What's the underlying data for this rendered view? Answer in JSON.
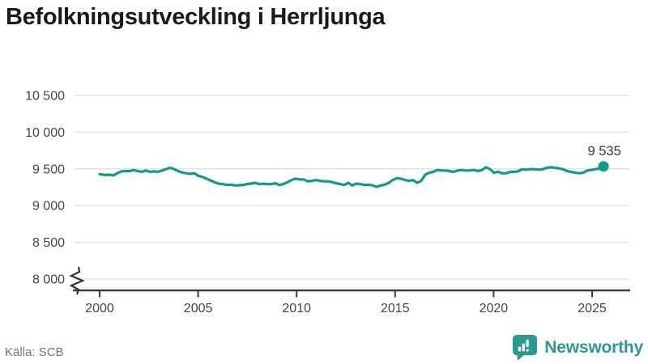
{
  "title": "Befolkningsutveckling i Herrljunga",
  "footer": {
    "source": "Källa: SCB",
    "brand": "Newsworthy"
  },
  "colors": {
    "line": "#0f9b8c",
    "marker": "#0f9b8c",
    "brand_teal": "#2a9a90",
    "grid": "#e2e2e2",
    "axis": "#3c3c3c",
    "tick_label": "#454545",
    "point_label": "#383838"
  },
  "chart_data": {
    "type": "line",
    "title": "Befolkningsutveckling i Herrljunga",
    "series_name": "Befolkning i Herrljunga",
    "xlabel": "",
    "ylabel": "",
    "grid": "horizontal",
    "y_axis_break": true,
    "ylim": [
      8000,
      10500
    ],
    "xlim": [
      1998.6,
      2026.9
    ],
    "y_ticks": [
      {
        "label": "10 500",
        "value": 10500
      },
      {
        "label": "10 000",
        "value": 10000
      },
      {
        "label": "9 500",
        "value": 9500
      },
      {
        "label": "9 000",
        "value": 9000
      },
      {
        "label": "8 500",
        "value": 8500
      },
      {
        "label": "8 000",
        "value": 8000
      }
    ],
    "x_ticks": [
      {
        "label": "2000",
        "value": 2000
      },
      {
        "label": "2005",
        "value": 2005
      },
      {
        "label": "2010",
        "value": 2010
      },
      {
        "label": "2015",
        "value": 2015
      },
      {
        "label": "2020",
        "value": 2020
      },
      {
        "label": "2025",
        "value": 2025
      }
    ],
    "last_point": {
      "label": "9 535",
      "year": 2025.58,
      "value": 9535
    },
    "points": [
      [
        2000.0,
        9430
      ],
      [
        2000.29,
        9415
      ],
      [
        2000.49,
        9422
      ],
      [
        2000.7,
        9411
      ],
      [
        2000.9,
        9441
      ],
      [
        2001.11,
        9467
      ],
      [
        2001.32,
        9470
      ],
      [
        2001.52,
        9470
      ],
      [
        2001.73,
        9485
      ],
      [
        2001.93,
        9470
      ],
      [
        2002.14,
        9460
      ],
      [
        2002.34,
        9478
      ],
      [
        2002.55,
        9460
      ],
      [
        2002.75,
        9467
      ],
      [
        2002.96,
        9460
      ],
      [
        2003.17,
        9478
      ],
      [
        2003.37,
        9497
      ],
      [
        2003.58,
        9515
      ],
      [
        2003.78,
        9497
      ],
      [
        2003.99,
        9470
      ],
      [
        2004.19,
        9450
      ],
      [
        2004.4,
        9440
      ],
      [
        2004.6,
        9433
      ],
      [
        2004.81,
        9440
      ],
      [
        2005.02,
        9404
      ],
      [
        2005.22,
        9390
      ],
      [
        2005.43,
        9367
      ],
      [
        2005.63,
        9341
      ],
      [
        2005.84,
        9319
      ],
      [
        2006.04,
        9300
      ],
      [
        2006.25,
        9293
      ],
      [
        2006.46,
        9281
      ],
      [
        2006.66,
        9285
      ],
      [
        2006.87,
        9274
      ],
      [
        2007.07,
        9278
      ],
      [
        2007.28,
        9281
      ],
      [
        2007.48,
        9293
      ],
      [
        2007.69,
        9300
      ],
      [
        2007.9,
        9311
      ],
      [
        2008.1,
        9293
      ],
      [
        2008.31,
        9300
      ],
      [
        2008.51,
        9293
      ],
      [
        2008.72,
        9293
      ],
      [
        2008.92,
        9304
      ],
      [
        2009.13,
        9281
      ],
      [
        2009.33,
        9293
      ],
      [
        2009.54,
        9319
      ],
      [
        2009.75,
        9348
      ],
      [
        2009.95,
        9367
      ],
      [
        2010.16,
        9356
      ],
      [
        2010.36,
        9356
      ],
      [
        2010.57,
        9330
      ],
      [
        2010.77,
        9337
      ],
      [
        2010.98,
        9348
      ],
      [
        2011.18,
        9337
      ],
      [
        2011.39,
        9330
      ],
      [
        2011.6,
        9330
      ],
      [
        2011.8,
        9319
      ],
      [
        2012.01,
        9304
      ],
      [
        2012.21,
        9293
      ],
      [
        2012.42,
        9281
      ],
      [
        2012.62,
        9311
      ],
      [
        2012.83,
        9274
      ],
      [
        2013.03,
        9300
      ],
      [
        2013.24,
        9293
      ],
      [
        2013.45,
        9281
      ],
      [
        2013.65,
        9285
      ],
      [
        2013.86,
        9274
      ],
      [
        2014.06,
        9255
      ],
      [
        2014.27,
        9274
      ],
      [
        2014.47,
        9285
      ],
      [
        2014.68,
        9311
      ],
      [
        2014.88,
        9348
      ],
      [
        2015.09,
        9374
      ],
      [
        2015.3,
        9367
      ],
      [
        2015.5,
        9348
      ],
      [
        2015.71,
        9337
      ],
      [
        2015.91,
        9348
      ],
      [
        2016.12,
        9311
      ],
      [
        2016.32,
        9337
      ],
      [
        2016.53,
        9422
      ],
      [
        2016.74,
        9448
      ],
      [
        2016.94,
        9460
      ],
      [
        2017.15,
        9485
      ],
      [
        2017.35,
        9478
      ],
      [
        2017.56,
        9478
      ],
      [
        2017.76,
        9470
      ],
      [
        2017.97,
        9460
      ],
      [
        2018.17,
        9478
      ],
      [
        2018.38,
        9485
      ],
      [
        2018.59,
        9478
      ],
      [
        2018.79,
        9478
      ],
      [
        2019.0,
        9485
      ],
      [
        2019.2,
        9470
      ],
      [
        2019.41,
        9485
      ],
      [
        2019.61,
        9522
      ],
      [
        2019.82,
        9496
      ],
      [
        2020.02,
        9448
      ],
      [
        2020.23,
        9460
      ],
      [
        2020.44,
        9441
      ],
      [
        2020.64,
        9441
      ],
      [
        2020.85,
        9460
      ],
      [
        2021.05,
        9460
      ],
      [
        2021.26,
        9470
      ],
      [
        2021.46,
        9496
      ],
      [
        2021.67,
        9489
      ],
      [
        2021.88,
        9496
      ],
      [
        2022.08,
        9496
      ],
      [
        2022.29,
        9489
      ],
      [
        2022.49,
        9496
      ],
      [
        2022.7,
        9515
      ],
      [
        2022.9,
        9522
      ],
      [
        2023.11,
        9515
      ],
      [
        2023.31,
        9507
      ],
      [
        2023.52,
        9496
      ],
      [
        2023.73,
        9470
      ],
      [
        2023.93,
        9460
      ],
      [
        2024.14,
        9448
      ],
      [
        2024.34,
        9441
      ],
      [
        2024.55,
        9448
      ],
      [
        2024.75,
        9478
      ],
      [
        2024.96,
        9485
      ],
      [
        2025.16,
        9496
      ],
      [
        2025.37,
        9507
      ],
      [
        2025.58,
        9535
      ]
    ]
  }
}
